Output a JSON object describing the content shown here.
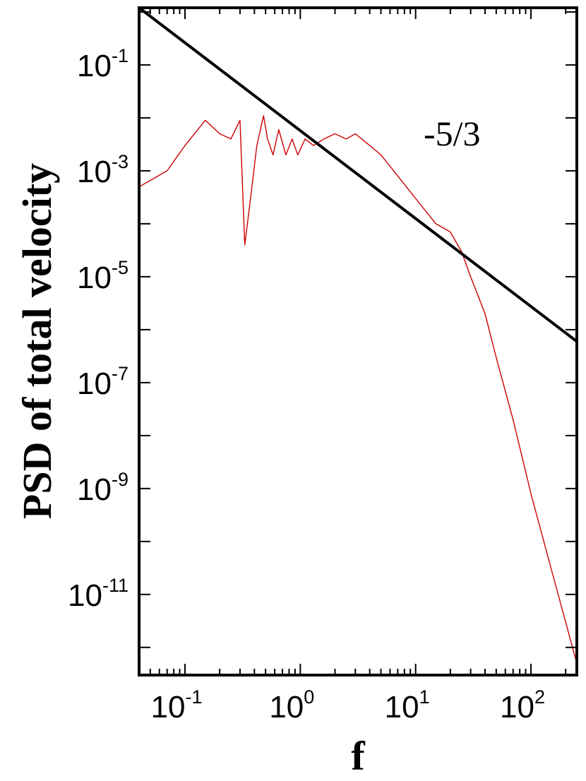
{
  "chart_data": {
    "type": "line",
    "xlabel": "f",
    "ylabel": "PSD of total velocity",
    "x_scale": "log",
    "y_scale": "log",
    "xlim": [
      0.04,
      250
    ],
    "ylim": [
      3e-13,
      1.2
    ],
    "x_ticks": [
      {
        "value": 0.1,
        "base": "10",
        "exp": "-1"
      },
      {
        "value": 1,
        "base": "10",
        "exp": "0"
      },
      {
        "value": 10,
        "base": "10",
        "exp": "1"
      },
      {
        "value": 100,
        "base": "10",
        "exp": "2"
      }
    ],
    "y_ticks": [
      {
        "value": 0.1,
        "base": "10",
        "exp": "-1"
      },
      {
        "value": 0.001,
        "base": "10",
        "exp": "-3"
      },
      {
        "value": 1e-05,
        "base": "10",
        "exp": "-5"
      },
      {
        "value": 1e-07,
        "base": "10",
        "exp": "-7"
      },
      {
        "value": 1e-09,
        "base": "10",
        "exp": "-9"
      },
      {
        "value": 1e-11,
        "base": "10",
        "exp": "-11"
      }
    ],
    "grid": false,
    "series": [
      {
        "color": "#cc0000",
        "x": [
          0.04,
          0.07,
          0.1,
          0.15,
          0.2,
          0.25,
          0.3,
          0.33,
          0.37,
          0.42,
          0.48,
          0.52,
          0.58,
          0.65,
          0.75,
          0.85,
          0.95,
          1.1,
          1.3,
          1.6,
          2.0,
          2.5,
          3.0,
          4.0,
          5.0,
          7.0,
          10,
          15,
          20,
          25,
          30,
          40,
          50,
          70,
          100,
          150,
          200,
          250
        ],
        "y": [
          0.0005,
          0.001,
          0.003,
          0.009,
          0.005,
          0.004,
          0.009,
          4e-05,
          0.0003,
          0.003,
          0.011,
          0.004,
          0.002,
          0.006,
          0.002,
          0.004,
          0.002,
          0.004,
          0.003,
          0.004,
          0.005,
          0.004,
          0.005,
          0.003,
          0.002,
          0.0008,
          0.0003,
          0.0001,
          7e-05,
          3e-05,
          1e-05,
          2e-06,
          3e-07,
          2e-08,
          8e-10,
          3e-11,
          3e-12,
          5e-13
        ]
      },
      {
        "color": "#000000",
        "x": [
          0.04,
          250
        ],
        "y": [
          1.2,
          6e-07
        ]
      }
    ],
    "annotations": [
      {
        "text": "-5/3",
        "x": 20,
        "y": 0.006
      }
    ]
  }
}
